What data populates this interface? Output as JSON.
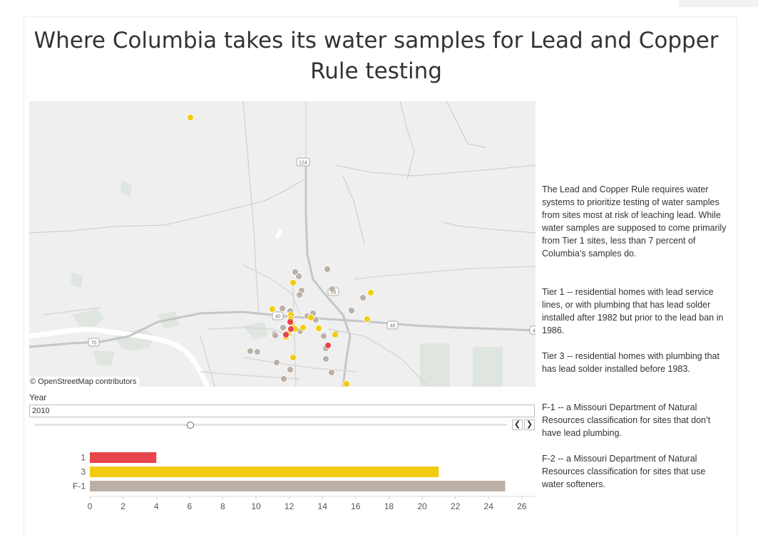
{
  "title": "Where Columbia takes its water samples for Lead and Copper Rule testing",
  "map": {
    "attribution": "© OpenStreetMap contributors",
    "road_labels": [
      "124",
      "63",
      "40",
      "40",
      "70",
      "4"
    ],
    "tier_colors": {
      "1": "#e8444b",
      "3": "#f2cc0f",
      "F-1": "#bcb0a6"
    }
  },
  "filter": {
    "label": "Year",
    "value": "2010",
    "prev_icon": "chevron-left-icon",
    "next_icon": "chevron-right-icon",
    "position": 0.33
  },
  "chart_data": {
    "type": "bar",
    "orientation": "horizontal",
    "categories": [
      "1",
      "3",
      "F-1"
    ],
    "values": [
      4,
      21,
      25
    ],
    "colors": [
      "#e8444b",
      "#f2cc0f",
      "#bcb0a6"
    ],
    "xlim": [
      0,
      27
    ],
    "xticks": [
      0,
      2,
      4,
      6,
      8,
      10,
      12,
      14,
      16,
      18,
      20,
      22,
      24,
      26
    ],
    "title": "",
    "xlabel": "",
    "ylabel": "",
    "grid": false
  },
  "legend": {
    "intro": "The Lead and Copper Rule requires water systems to prioritize testing of water samples from sites most at risk of leaching lead. While water samples are supposed to come primarily from Tier 1 sites, less than 7 percent of Columbia’s samples do.",
    "tier1": "Tier 1 -- residential homes with lead service lines, or with plumbing that has lead solder installed after 1982 but prior to the lead ban in 1986.",
    "tier3": "Tier 3 -- residential homes with plumbing that has lead solder  installed before 1983.",
    "f1": "F-1 -- a Missouri Department of Natural Resources classification for sites that don’t have lead plumbing.",
    "f2": "F-2 -- a Missouri Department of Natural Resources classification for sites that use water softeners."
  }
}
